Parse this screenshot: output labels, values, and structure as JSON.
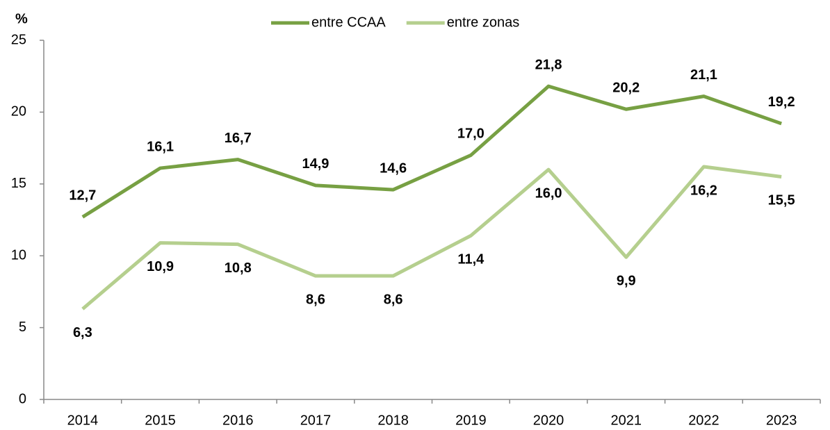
{
  "chart_data": {
    "type": "line",
    "y_label": "%",
    "categories": [
      "2014",
      "2015",
      "2016",
      "2017",
      "2018",
      "2019",
      "2020",
      "2021",
      "2022",
      "2023"
    ],
    "series": [
      {
        "name": "entre CCAA",
        "color": "#77a043",
        "values": [
          12.7,
          16.1,
          16.7,
          14.9,
          14.6,
          17.0,
          21.8,
          20.2,
          21.1,
          19.2
        ],
        "value_labels": [
          "12,7",
          "16,1",
          "16,7",
          "14,9",
          "14,6",
          "17,0",
          "21,8",
          "20,2",
          "21,1",
          "19,2"
        ]
      },
      {
        "name": "entre zonas",
        "color": "#b5cf8e",
        "values": [
          6.3,
          10.9,
          10.8,
          8.6,
          8.6,
          11.4,
          16.0,
          9.9,
          16.2,
          15.5
        ],
        "value_labels": [
          "6,3",
          "10,9",
          "10,8",
          "8,6",
          "8,6",
          "11,4",
          "16,0",
          "9,9",
          "16,2",
          "15,5"
        ]
      }
    ],
    "ylim": [
      0,
      25
    ],
    "yticks": [
      0,
      5,
      10,
      15,
      20,
      25
    ],
    "legend": "top"
  }
}
